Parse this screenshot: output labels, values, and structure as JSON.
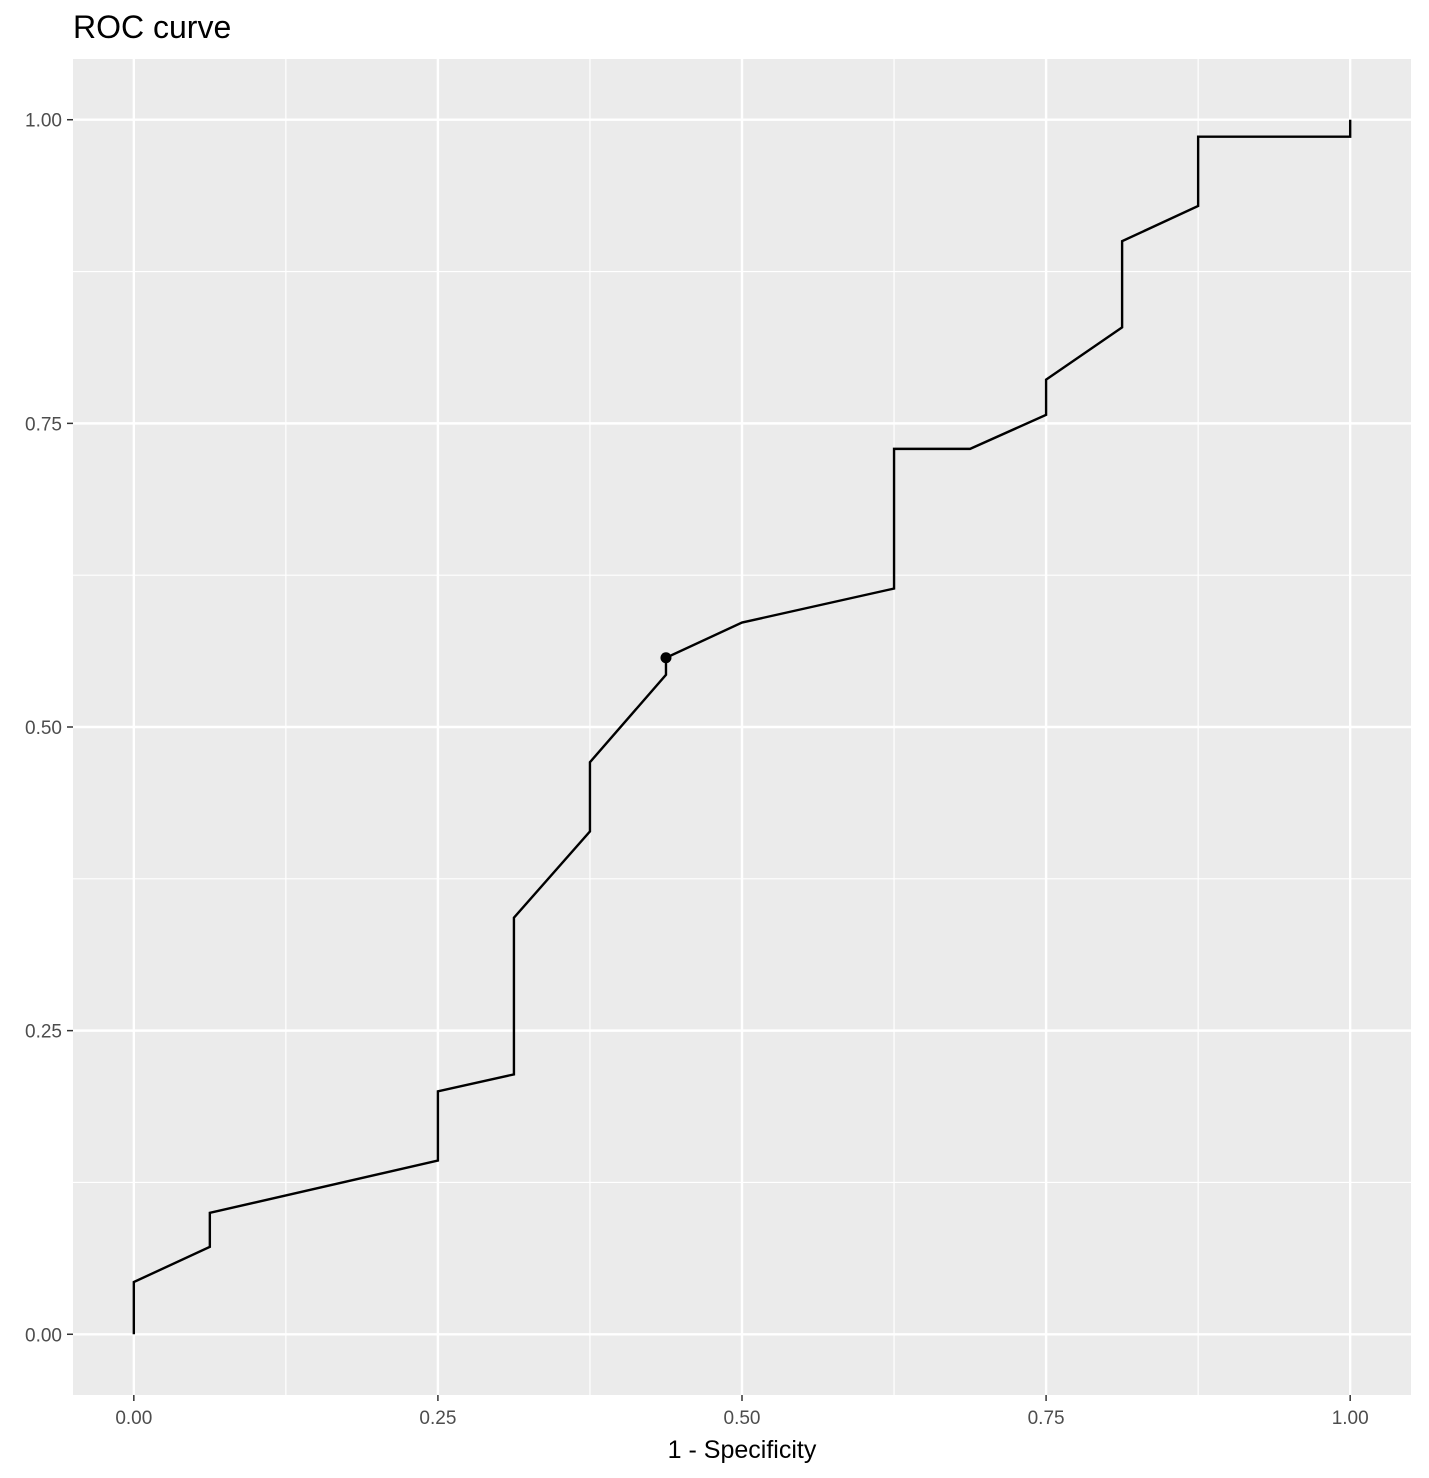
{
  "chart_data": {
    "type": "line",
    "title": "ROC curve",
    "xlabel": "1 - Specificity",
    "ylabel": "",
    "xlim": [
      -0.05,
      1.05
    ],
    "ylim": [
      -0.05,
      1.05
    ],
    "grid": true,
    "legend": "none",
    "x_ticks": [
      0,
      0.25,
      0.5,
      0.75,
      1
    ],
    "x_tick_labels": [
      "0.00",
      "0.25",
      "0.50",
      "0.75",
      "1.00"
    ],
    "y_ticks": [
      0,
      0.25,
      0.5,
      0.75,
      1
    ],
    "y_tick_labels": [
      "0.00",
      "0.25",
      "0.50",
      "0.75",
      "1.00"
    ],
    "series": [
      {
        "x": [
          0,
          0,
          0.0625,
          0.0625,
          0.25,
          0.25,
          0.3125,
          0.3125,
          0.375,
          0.375,
          0.4375,
          0.4375,
          0.5,
          0.625,
          0.625,
          0.6875,
          0.75,
          0.75,
          0.8125,
          0.8125,
          0.875,
          0.875,
          1.0,
          1.0
        ],
        "y": [
          0,
          0.043,
          0.072,
          0.1,
          0.143,
          0.2,
          0.214,
          0.343,
          0.414,
          0.471,
          0.543,
          0.557,
          0.586,
          0.614,
          0.729,
          0.729,
          0.757,
          0.786,
          0.829,
          0.9,
          0.929,
          0.986,
          0.986,
          1.0
        ],
        "color": "#000000"
      }
    ],
    "highlight_point": {
      "x": 0.4375,
      "y": 0.557,
      "color": "#000000"
    },
    "panel_background": "#ebebeb",
    "grid_color": "#ffffff"
  }
}
